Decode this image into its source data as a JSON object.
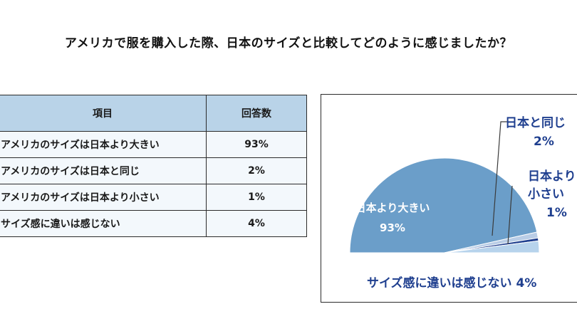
{
  "title": "アメリカで服を購入した際、日本のサイズと比較してどのように感じましたか？",
  "table": {
    "headers": [
      "項目",
      "回答数"
    ],
    "rows": [
      {
        "item": "アメリカのサイズは日本より大きい",
        "count": "93%"
      },
      {
        "item": "アメリカのサイズは日本と同じ",
        "count": "2%"
      },
      {
        "item": "アメリカのサイズは日本より小さい",
        "count": "1%"
      },
      {
        "item": "サイズ感に違いは感じない",
        "count": "4%"
      }
    ]
  },
  "chart_data": {
    "type": "pie",
    "style": "half-pie",
    "categories": [
      "日本より大きい",
      "日本と同じ",
      "日本より小さい",
      "サイズ感に違いは感じない"
    ],
    "values": [
      93,
      2,
      1,
      4
    ],
    "labels": [
      {
        "name": "日本より大きい",
        "value": "93%"
      },
      {
        "name": "日本と同じ",
        "value": "2%"
      },
      {
        "name": "日本より\n小さい",
        "value": "1%"
      },
      {
        "name": "サイズ感に違いは感じない",
        "value": "4%"
      }
    ],
    "colors": [
      "#6b9ec9",
      "#b9cde6",
      "#1f3f8f",
      "#b7d3ec"
    ],
    "label_color": "#1f3f8f"
  }
}
